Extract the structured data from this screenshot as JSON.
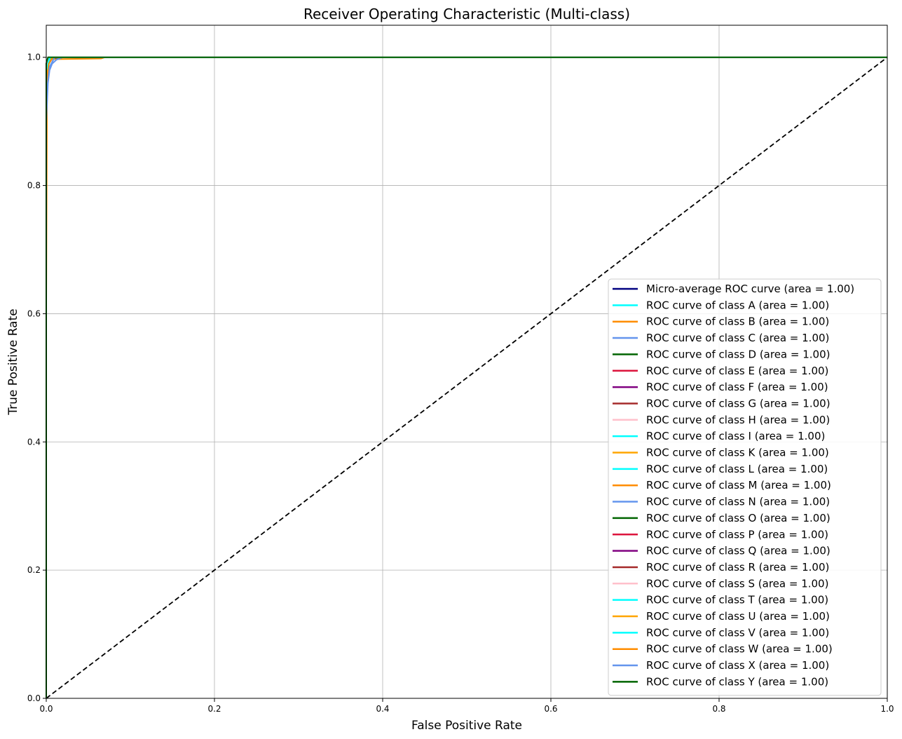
{
  "chart_data": {
    "type": "line",
    "title": "Receiver Operating Characteristic (Multi-class)",
    "xlabel": "False Positive Rate",
    "ylabel": "True Positive Rate",
    "xlim": [
      0.0,
      1.0
    ],
    "ylim": [
      0.0,
      1.05
    ],
    "xticks": [
      "0.0",
      "0.2",
      "0.4",
      "0.6",
      "0.8",
      "1.0"
    ],
    "yticks": [
      "0.0",
      "0.2",
      "0.4",
      "0.6",
      "0.8",
      "1.0"
    ],
    "grid": true,
    "legend_position": "lower-right",
    "reference_line": {
      "x": [
        0,
        1
      ],
      "y": [
        0,
        1
      ],
      "style": "dashed",
      "color": "#000000"
    },
    "series": [
      {
        "name": "Micro-average ROC curve (area = 1.00)",
        "color": "#000080",
        "x": [
          0,
          0,
          0.001,
          0.003,
          0.006,
          0.01,
          0.02,
          1
        ],
        "y": [
          0,
          0.93,
          0.975,
          0.99,
          0.996,
          0.999,
          1.0,
          1.0
        ]
      },
      {
        "name": "ROC curve of class A (area = 1.00)",
        "color": "#00FFFF",
        "x": [
          0,
          0,
          0.002,
          0.005,
          0.01,
          1
        ],
        "y": [
          0,
          0.96,
          0.985,
          0.995,
          1.0,
          1.0
        ]
      },
      {
        "name": "ROC curve of class B (area = 1.00)",
        "color": "#FF8C00",
        "x": [
          0,
          0,
          0.001,
          0.002,
          0.004,
          0.065,
          0.07,
          1
        ],
        "y": [
          0,
          0.62,
          0.96,
          0.99,
          0.997,
          0.998,
          1.0,
          1.0
        ]
      },
      {
        "name": "ROC curve of class C (area = 1.00)",
        "color": "#6495ED",
        "x": [
          0,
          0,
          0.002,
          0.004,
          0.007,
          0.012,
          0.02,
          1
        ],
        "y": [
          0,
          0.9,
          0.96,
          0.98,
          0.99,
          0.996,
          1.0,
          1.0
        ]
      },
      {
        "name": "ROC curve of class D (area = 1.00)",
        "color": "#006400",
        "x": [
          0,
          0,
          0.002,
          0.006,
          1
        ],
        "y": [
          0,
          0.97,
          0.995,
          1.0,
          1.0
        ]
      },
      {
        "name": "ROC curve of class E (area = 1.00)",
        "color": "#DC143C",
        "x": [
          0,
          0,
          0.003,
          1
        ],
        "y": [
          0,
          0.985,
          1.0,
          1.0
        ]
      },
      {
        "name": "ROC curve of class F (area = 1.00)",
        "color": "#800080",
        "x": [
          0,
          0,
          0.003,
          1
        ],
        "y": [
          0,
          0.985,
          1.0,
          1.0
        ]
      },
      {
        "name": "ROC curve of class G (area = 1.00)",
        "color": "#A52A2A",
        "x": [
          0,
          0,
          0.004,
          1
        ],
        "y": [
          0,
          0.98,
          1.0,
          1.0
        ]
      },
      {
        "name": "ROC curve of class H (area = 1.00)",
        "color": "#FFC0CB",
        "x": [
          0,
          0,
          0.004,
          1
        ],
        "y": [
          0,
          0.98,
          1.0,
          1.0
        ]
      },
      {
        "name": "ROC curve of class I (area = 1.00)",
        "color": "#00FFFF",
        "x": [
          0,
          0,
          0.005,
          1
        ],
        "y": [
          0,
          0.975,
          1.0,
          1.0
        ]
      },
      {
        "name": "ROC curve of class K (area = 1.00)",
        "color": "#FFA500",
        "x": [
          0,
          0,
          0.002,
          0.006,
          1
        ],
        "y": [
          0,
          0.95,
          0.99,
          1.0,
          1.0
        ]
      },
      {
        "name": "ROC curve of class L (area = 1.00)",
        "color": "#00FFFF",
        "x": [
          0,
          0,
          0.004,
          1
        ],
        "y": [
          0,
          0.98,
          1.0,
          1.0
        ]
      },
      {
        "name": "ROC curve of class M (area = 1.00)",
        "color": "#FF8C00",
        "x": [
          0,
          0,
          0.003,
          0.008,
          1
        ],
        "y": [
          0,
          0.95,
          0.99,
          1.0,
          1.0
        ]
      },
      {
        "name": "ROC curve of class N (area = 1.00)",
        "color": "#6495ED",
        "x": [
          0,
          0,
          0.004,
          0.01,
          1
        ],
        "y": [
          0,
          0.94,
          0.985,
          1.0,
          1.0
        ]
      },
      {
        "name": "ROC curve of class O (area = 1.00)",
        "color": "#006400",
        "x": [
          0,
          0,
          0.003,
          1
        ],
        "y": [
          0,
          0.985,
          1.0,
          1.0
        ]
      },
      {
        "name": "ROC curve of class P (area = 1.00)",
        "color": "#DC143C",
        "x": [
          0,
          0,
          0.003,
          1
        ],
        "y": [
          0,
          0.99,
          1.0,
          1.0
        ]
      },
      {
        "name": "ROC curve of class Q (area = 1.00)",
        "color": "#800080",
        "x": [
          0,
          0,
          0.003,
          1
        ],
        "y": [
          0,
          0.99,
          1.0,
          1.0
        ]
      },
      {
        "name": "ROC curve of class R (area = 1.00)",
        "color": "#A52A2A",
        "x": [
          0,
          0,
          0.004,
          1
        ],
        "y": [
          0,
          0.985,
          1.0,
          1.0
        ]
      },
      {
        "name": "ROC curve of class S (area = 1.00)",
        "color": "#FFC0CB",
        "x": [
          0,
          0,
          0.004,
          1
        ],
        "y": [
          0,
          0.985,
          1.0,
          1.0
        ]
      },
      {
        "name": "ROC curve of class T (area = 1.00)",
        "color": "#00FFFF",
        "x": [
          0,
          0,
          0.005,
          1
        ],
        "y": [
          0,
          0.98,
          1.0,
          1.0
        ]
      },
      {
        "name": "ROC curve of class U (area = 1.00)",
        "color": "#FFA500",
        "x": [
          0,
          0,
          0.003,
          0.007,
          1
        ],
        "y": [
          0,
          0.95,
          0.99,
          1.0,
          1.0
        ]
      },
      {
        "name": "ROC curve of class V (area = 1.00)",
        "color": "#00FFFF",
        "x": [
          0,
          0,
          0.004,
          1
        ],
        "y": [
          0,
          0.98,
          1.0,
          1.0
        ]
      },
      {
        "name": "ROC curve of class W (area = 1.00)",
        "color": "#FF8C00",
        "x": [
          0,
          0,
          0.003,
          0.008,
          1
        ],
        "y": [
          0,
          0.95,
          0.99,
          1.0,
          1.0
        ]
      },
      {
        "name": "ROC curve of class X (area = 1.00)",
        "color": "#6495ED",
        "x": [
          0,
          0,
          0.004,
          0.01,
          1
        ],
        "y": [
          0,
          0.94,
          0.985,
          1.0,
          1.0
        ]
      },
      {
        "name": "ROC curve of class Y (area = 1.00)",
        "color": "#006400",
        "x": [
          0,
          0,
          0.002,
          1
        ],
        "y": [
          0,
          0.99,
          1.0,
          1.0
        ]
      }
    ]
  }
}
